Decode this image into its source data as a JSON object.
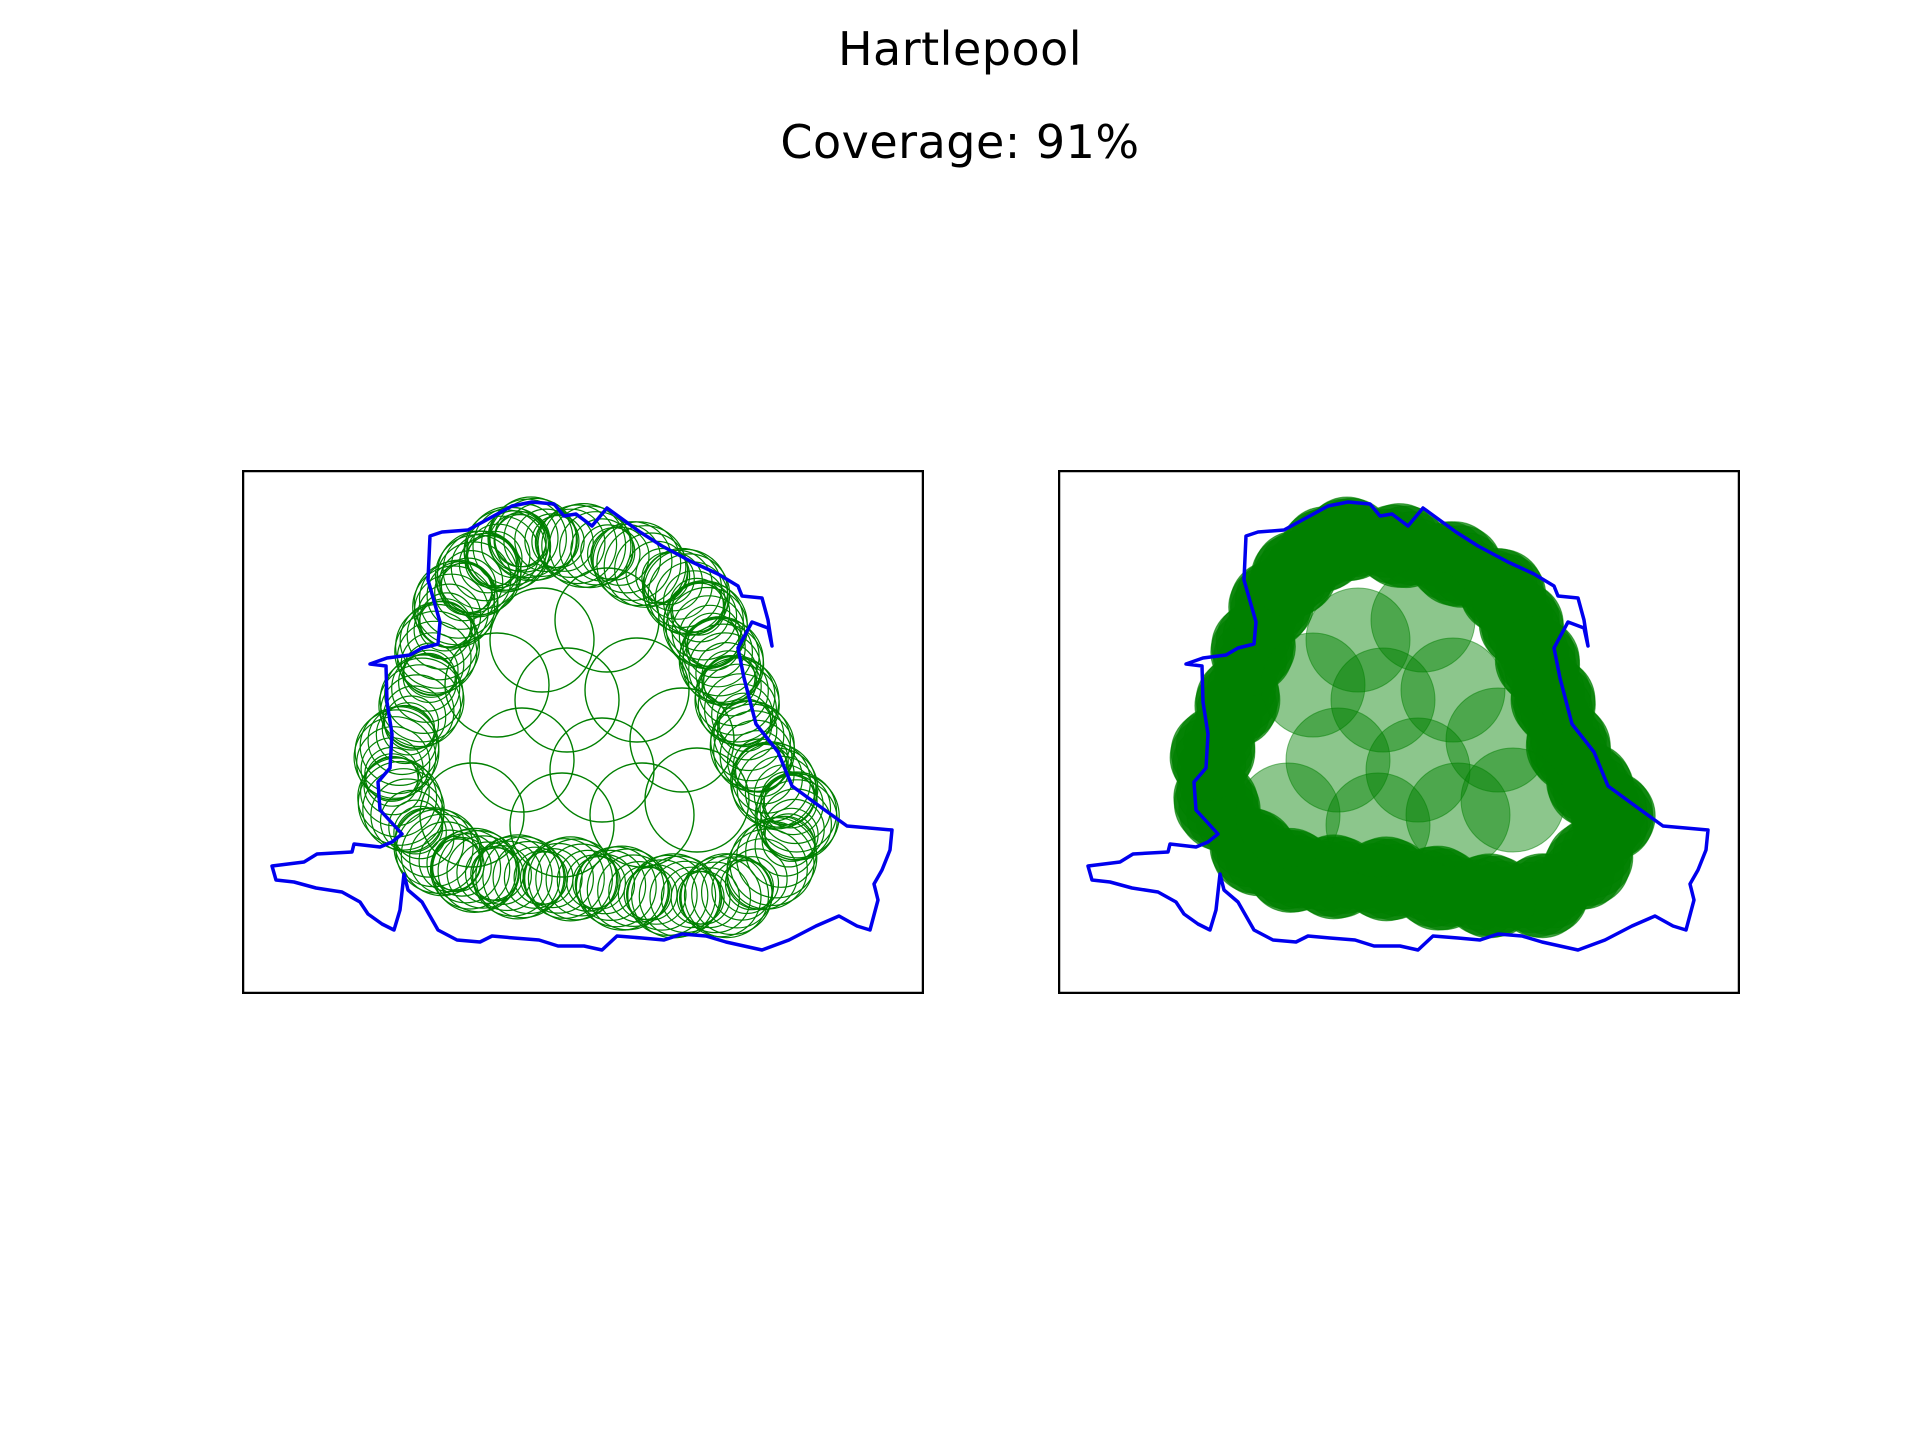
{
  "title": "Hartlepool",
  "subtitle": "Coverage: 91%",
  "colors": {
    "boundary": "#0000ee",
    "coverage": "#008000",
    "frame": "#000000",
    "background": "#ffffff"
  },
  "panels": [
    {
      "id": "left",
      "style": "circle-outlines"
    },
    {
      "id": "right",
      "style": "filled-circles"
    }
  ]
}
